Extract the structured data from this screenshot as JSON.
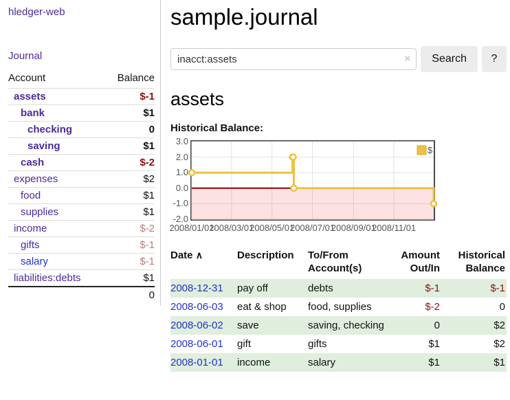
{
  "app": {
    "brand": "hledger-web",
    "nav_journal": "Journal"
  },
  "sidebar": {
    "account_header": "Account",
    "balance_header": "Balance",
    "accounts": [
      {
        "name": "assets",
        "depth": 1,
        "bold": true,
        "balance": "$-1",
        "neg": "strong"
      },
      {
        "name": "bank",
        "depth": 2,
        "bold": true,
        "balance": "$1"
      },
      {
        "name": "checking",
        "depth": 3,
        "bold": true,
        "balance": "0"
      },
      {
        "name": "saving",
        "depth": 3,
        "bold": true,
        "balance": "$1"
      },
      {
        "name": "cash",
        "depth": 2,
        "bold": true,
        "balance": "$-2",
        "neg": "strong"
      },
      {
        "name": "expenses",
        "depth": 1,
        "bold": false,
        "balance": "$2"
      },
      {
        "name": "food",
        "depth": 2,
        "bold": false,
        "balance": "$1"
      },
      {
        "name": "supplies",
        "depth": 2,
        "bold": false,
        "balance": "$1"
      },
      {
        "name": "income",
        "depth": 1,
        "bold": false,
        "balance": "$-2",
        "neg": "soft"
      },
      {
        "name": "gifts",
        "depth": 2,
        "bold": false,
        "balance": "$-1",
        "neg": "soft"
      },
      {
        "name": "salary",
        "depth": 2,
        "bold": false,
        "balance": "$-1",
        "neg": "soft",
        "unvisited": true
      },
      {
        "name": "liabilities:debts",
        "depth": 1,
        "bold": false,
        "balance": "$1"
      }
    ],
    "total": "0"
  },
  "header": {
    "title": "sample.journal"
  },
  "search": {
    "value": "inacct:assets",
    "clear_icon": "×",
    "button_label": "Search",
    "help_label": "?"
  },
  "account_page": {
    "title": "assets",
    "chart_label": "Historical Balance:"
  },
  "chart_data": {
    "type": "line",
    "step": true,
    "title": "Historical Balance:",
    "x_type": "date",
    "xlim": [
      "2008-01-01",
      "2008-12-31"
    ],
    "ylim": [
      -2,
      3
    ],
    "y_ticks": [
      3.0,
      2.0,
      1.0,
      0.0,
      -1.0,
      -2.0
    ],
    "x_ticks": [
      {
        "label": "2008/01/01",
        "date": "2008-01-01"
      },
      {
        "label": "2008/03/01",
        "date": "2008-03-01"
      },
      {
        "label": "2008/05/01",
        "date": "2008-05-01"
      },
      {
        "label": "2008/07/01",
        "date": "2008-07-01"
      },
      {
        "label": "2008/09/01",
        "date": "2008-09-01"
      },
      {
        "label": "2008/11/01",
        "date": "2008-11-01"
      }
    ],
    "series": [
      {
        "name": "$",
        "color": "#edc240",
        "points": [
          [
            "2008-01-01",
            1
          ],
          [
            "2008-06-01",
            2
          ],
          [
            "2008-06-02",
            2
          ],
          [
            "2008-06-03",
            0
          ],
          [
            "2008-12-31",
            -1
          ]
        ]
      }
    ],
    "legend_position": "top-right",
    "grid": true,
    "grid_color": "#e2e2e2",
    "negative_region_fill": "rgba(235,85,85,0.17)",
    "zero_line_color": "#8b0000"
  },
  "register": {
    "sort_icon": "∧",
    "columns": {
      "date": "Date",
      "description": "Description",
      "accounts_l1": "To/From",
      "accounts_l2": "Account(s)",
      "amount_l1": "Amount",
      "amount_l2": "Out/In",
      "balance_l1": "Historical",
      "balance_l2": "Balance"
    },
    "rows": [
      {
        "date": "2008-12-31",
        "description": "pay off",
        "accounts": "debts",
        "amount": "$-1",
        "amount_neg": true,
        "balance": "$-1",
        "balance_neg": true
      },
      {
        "date": "2008-06-03",
        "description": "eat & shop",
        "accounts": "food, supplies",
        "amount": "$-2",
        "amount_neg": true,
        "balance": "0",
        "balance_neg": false
      },
      {
        "date": "2008-06-02",
        "description": "save",
        "accounts": "saving, checking",
        "amount": "0",
        "amount_neg": false,
        "balance": "$2",
        "balance_neg": false
      },
      {
        "date": "2008-06-01",
        "description": "gift",
        "accounts": "gifts",
        "amount": "$1",
        "amount_neg": false,
        "balance": "$2",
        "balance_neg": false
      },
      {
        "date": "2008-01-01",
        "description": "income",
        "accounts": "salary",
        "amount": "$1",
        "amount_neg": false,
        "balance": "$1",
        "balance_neg": false
      }
    ]
  }
}
